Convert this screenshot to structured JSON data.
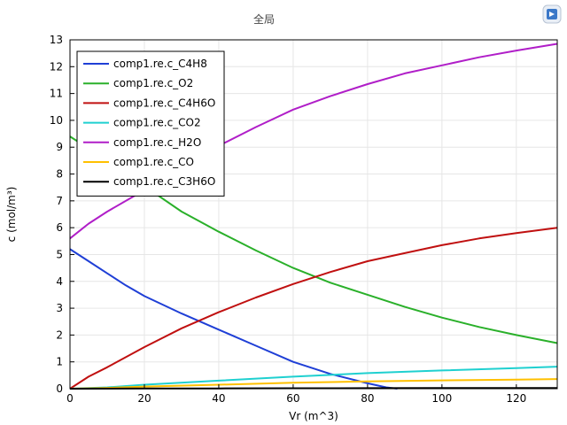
{
  "chart_data": {
    "type": "line",
    "title": "全局",
    "xlabel": "Vr (m^3)",
    "ylabel": "c (mol/m³)",
    "xlim": [
      0,
      131
    ],
    "ylim": [
      0,
      13
    ],
    "xticks": [
      0,
      20,
      40,
      60,
      80,
      100,
      120
    ],
    "yticks": [
      0,
      1,
      2,
      3,
      4,
      5,
      6,
      7,
      8,
      9,
      10,
      11,
      12,
      13
    ],
    "grid": true,
    "legend_position": "top-left",
    "series": [
      {
        "name": "comp1.re.c_C4H8",
        "color": "#1f3fd6",
        "x": [
          0,
          5,
          10,
          15,
          20,
          30,
          40,
          50,
          60,
          70,
          80,
          85,
          88
        ],
        "y": [
          5.2,
          4.75,
          4.3,
          3.85,
          3.45,
          2.8,
          2.2,
          1.6,
          1.0,
          0.55,
          0.2,
          0.05,
          0
        ]
      },
      {
        "name": "comp1.re.c_O2",
        "color": "#2ab02a",
        "x": [
          0,
          10,
          20,
          30,
          40,
          50,
          60,
          70,
          80,
          90,
          100,
          110,
          120,
          131
        ],
        "y": [
          9.4,
          8.5,
          7.55,
          6.6,
          5.85,
          5.15,
          4.5,
          3.95,
          3.5,
          3.05,
          2.65,
          2.3,
          2.0,
          1.7
        ]
      },
      {
        "name": "comp1.re.c_C4H6O",
        "color": "#c01010",
        "x": [
          0,
          5,
          10,
          20,
          30,
          40,
          50,
          60,
          70,
          80,
          90,
          100,
          110,
          120,
          131
        ],
        "y": [
          0,
          0.45,
          0.8,
          1.55,
          2.25,
          2.85,
          3.4,
          3.9,
          4.35,
          4.75,
          5.05,
          5.35,
          5.6,
          5.8,
          6.0
        ]
      },
      {
        "name": "comp1.re.c_CO2",
        "color": "#1fd0d0",
        "x": [
          0,
          10,
          20,
          40,
          60,
          80,
          100,
          120,
          131
        ],
        "y": [
          0,
          0.05,
          0.15,
          0.3,
          0.45,
          0.58,
          0.68,
          0.77,
          0.82
        ]
      },
      {
        "name": "comp1.re.c_H2O",
        "color": "#b01ec8",
        "x": [
          0,
          5,
          10,
          20,
          30,
          40,
          50,
          60,
          70,
          80,
          90,
          100,
          110,
          120,
          131
        ],
        "y": [
          5.6,
          6.15,
          6.6,
          7.4,
          8.3,
          9.05,
          9.75,
          10.4,
          10.9,
          11.35,
          11.75,
          12.05,
          12.35,
          12.6,
          12.85
        ]
      },
      {
        "name": "comp1.re.c_CO",
        "color": "#ffc000",
        "x": [
          0,
          10,
          20,
          40,
          60,
          80,
          100,
          120,
          131
        ],
        "y": [
          0,
          0.03,
          0.08,
          0.15,
          0.22,
          0.27,
          0.31,
          0.34,
          0.36
        ]
      },
      {
        "name": "comp1.re.c_C3H6O",
        "color": "#000000",
        "x": [
          0,
          20,
          40,
          60,
          80,
          100,
          120,
          131
        ],
        "y": [
          0,
          0.005,
          0.01,
          0.015,
          0.02,
          0.022,
          0.025,
          0.027
        ]
      }
    ]
  }
}
